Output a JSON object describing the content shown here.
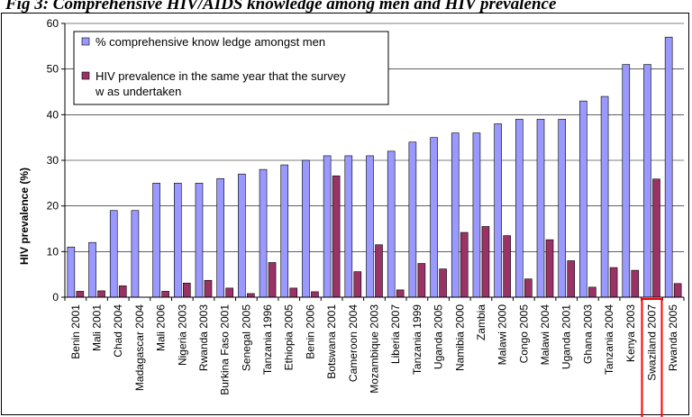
{
  "title": "Fig 3: Comprehensive HIV/AIDS knowledge among men and HIV prevalence",
  "chart_data": {
    "type": "bar",
    "ylabel": "HIV prevalence (%)",
    "xlabel": "",
    "ylim": [
      0,
      60
    ],
    "yticks": [
      0,
      10,
      20,
      30,
      40,
      50,
      60
    ],
    "grid": true,
    "legend_position": "top-left",
    "categories": [
      "Benin 2001",
      "Mali 2001",
      "Chad 2004",
      "Madagascar 2004",
      "Mali 2006",
      "Nigeria 2003",
      "Rwanda 2003",
      "Burkina Faso 2001",
      "Senegal 2005",
      "Tanzania 1996",
      "Ethiopia 2005",
      "Benin 2006",
      "Botswana 2001",
      "Cameroon 2004",
      "Mozambique 2003",
      "Liberia 2007",
      "Tanzania 1999",
      "Uganda 2005",
      "Namibia 2000",
      "Zambia",
      "Malawi 2000",
      "Congo 2005",
      "Malawi 2004",
      "Uganda 2001",
      "Ghana 2003",
      "Tanzania 2004",
      "Kenya 2003",
      "Swaziland 2007",
      "Rwanda 2005"
    ],
    "highlighted_category": "Swaziland 2007",
    "highlight_color": "#ff0000",
    "series": [
      {
        "name": "% comprehensive know ledge amongst men",
        "color": "#9999ff",
        "values": [
          11,
          12,
          19,
          19,
          25,
          25,
          25,
          26,
          27,
          28,
          29,
          30,
          31,
          31,
          31,
          32,
          34,
          35,
          36,
          36,
          38,
          39,
          39,
          39,
          43,
          44,
          51,
          51,
          57
        ]
      },
      {
        "name": "HIV prevalence in the same year that the survey w as undertaken",
        "legend_lines": [
          "HIV prevalence in the same year that the survey",
          "w as undertaken"
        ],
        "color": "#993366",
        "values": [
          1.3,
          1.4,
          2.5,
          0,
          1.3,
          3.1,
          3.7,
          2.0,
          0.8,
          7.6,
          2.0,
          1.2,
          26.6,
          5.6,
          11.5,
          1.6,
          7.4,
          6.2,
          14.2,
          15.5,
          13.5,
          4.0,
          12.6,
          8.0,
          2.2,
          6.5,
          5.9,
          25.9,
          3.0
        ]
      }
    ]
  }
}
